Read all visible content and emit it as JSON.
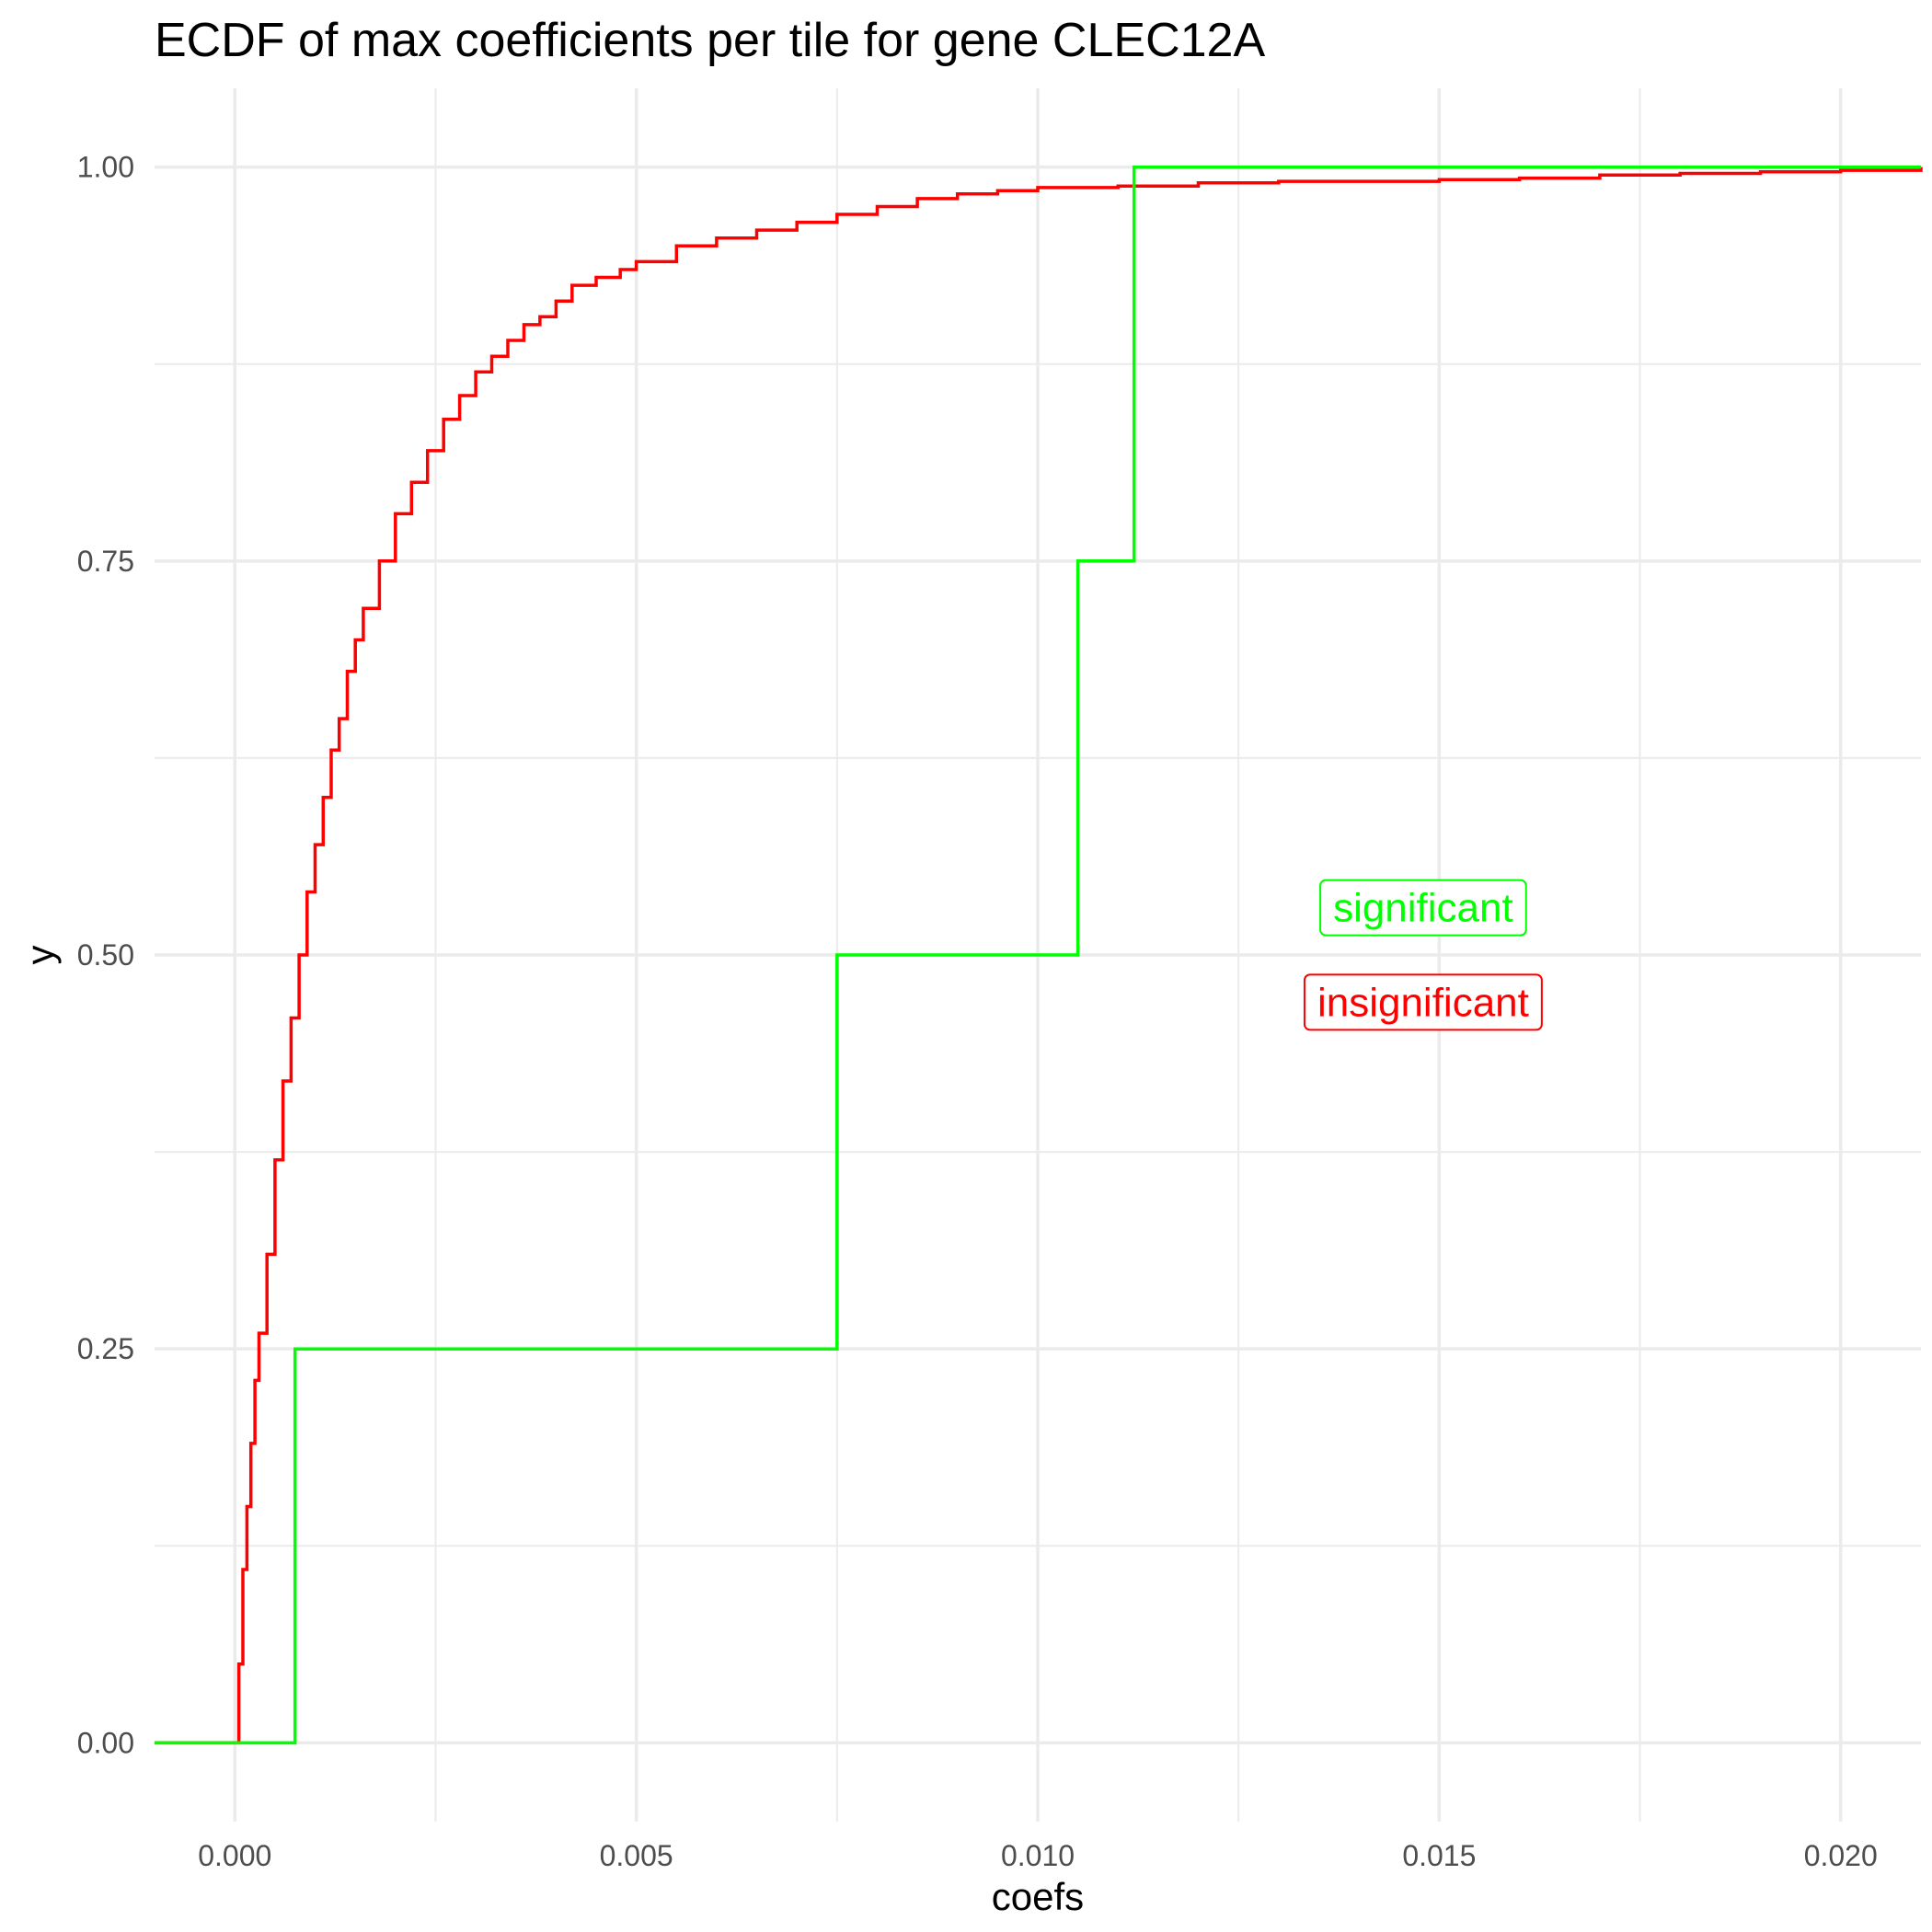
{
  "chart_data": {
    "type": "line",
    "step": true,
    "title": "ECDF of max coefficients per tile for gene CLEC12A",
    "xlabel": "coefs",
    "ylabel": "y",
    "xlim": [
      -0.001,
      0.021
    ],
    "ylim": [
      -0.05,
      1.05
    ],
    "x_ticks": [
      0.0,
      0.005,
      0.01,
      0.015,
      0.02
    ],
    "x_tick_labels": [
      "0.000",
      "0.005",
      "0.010",
      "0.015",
      "0.020"
    ],
    "y_ticks": [
      0.0,
      0.25,
      0.5,
      0.75,
      1.0
    ],
    "y_tick_labels": [
      "0.00",
      "0.25",
      "0.50",
      "0.75",
      "1.00"
    ],
    "grid": true,
    "series": [
      {
        "name": "insignificant",
        "color": "#ff0000",
        "points": [
          [
            -0.001,
            0.0
          ],
          [
            0.0,
            0.0
          ],
          [
            5e-05,
            0.05
          ],
          [
            0.0001,
            0.11
          ],
          [
            0.00015,
            0.15
          ],
          [
            0.0002,
            0.19
          ],
          [
            0.00025,
            0.23
          ],
          [
            0.0003,
            0.26
          ],
          [
            0.0004,
            0.31
          ],
          [
            0.0005,
            0.37
          ],
          [
            0.0006,
            0.42
          ],
          [
            0.0007,
            0.46
          ],
          [
            0.0008,
            0.5
          ],
          [
            0.0009,
            0.54
          ],
          [
            0.001,
            0.57
          ],
          [
            0.0011,
            0.6
          ],
          [
            0.0012,
            0.63
          ],
          [
            0.0013,
            0.65
          ],
          [
            0.0014,
            0.68
          ],
          [
            0.0015,
            0.7
          ],
          [
            0.0016,
            0.72
          ],
          [
            0.0018,
            0.75
          ],
          [
            0.002,
            0.78
          ],
          [
            0.0022,
            0.8
          ],
          [
            0.0024,
            0.82
          ],
          [
            0.0026,
            0.84
          ],
          [
            0.0028,
            0.855
          ],
          [
            0.003,
            0.87
          ],
          [
            0.0032,
            0.88
          ],
          [
            0.0034,
            0.89
          ],
          [
            0.0036,
            0.9
          ],
          [
            0.0038,
            0.905
          ],
          [
            0.004,
            0.915
          ],
          [
            0.0042,
            0.925
          ],
          [
            0.0045,
            0.93
          ],
          [
            0.0048,
            0.935
          ],
          [
            0.005,
            0.94
          ],
          [
            0.0055,
            0.95
          ],
          [
            0.006,
            0.955
          ],
          [
            0.0065,
            0.96
          ],
          [
            0.007,
            0.965
          ],
          [
            0.0075,
            0.97
          ],
          [
            0.008,
            0.975
          ],
          [
            0.0085,
            0.98
          ],
          [
            0.009,
            0.983
          ],
          [
            0.0095,
            0.985
          ],
          [
            0.01,
            0.987
          ],
          [
            0.011,
            0.988
          ],
          [
            0.012,
            0.99
          ],
          [
            0.013,
            0.991
          ],
          [
            0.015,
            0.992
          ],
          [
            0.016,
            0.993
          ],
          [
            0.017,
            0.995
          ],
          [
            0.018,
            0.996
          ],
          [
            0.019,
            0.997
          ],
          [
            0.02,
            0.998
          ],
          [
            0.021,
            1.0
          ]
        ]
      },
      {
        "name": "significant",
        "color": "#00ff00",
        "points": [
          [
            -0.001,
            0.0
          ],
          [
            0.00075,
            0.0
          ],
          [
            0.00075,
            0.25
          ],
          [
            0.0075,
            0.25
          ],
          [
            0.0075,
            0.5
          ],
          [
            0.0105,
            0.5
          ],
          [
            0.0105,
            0.75
          ],
          [
            0.0112,
            0.75
          ],
          [
            0.0112,
            1.0
          ],
          [
            0.021,
            1.0
          ]
        ]
      }
    ],
    "annotations": [
      {
        "text": "significant",
        "x": 0.0148,
        "y": 0.53,
        "color": "#00ff00"
      },
      {
        "text": "insignificant",
        "x": 0.0148,
        "y": 0.47,
        "color": "#ff0000"
      }
    ]
  }
}
